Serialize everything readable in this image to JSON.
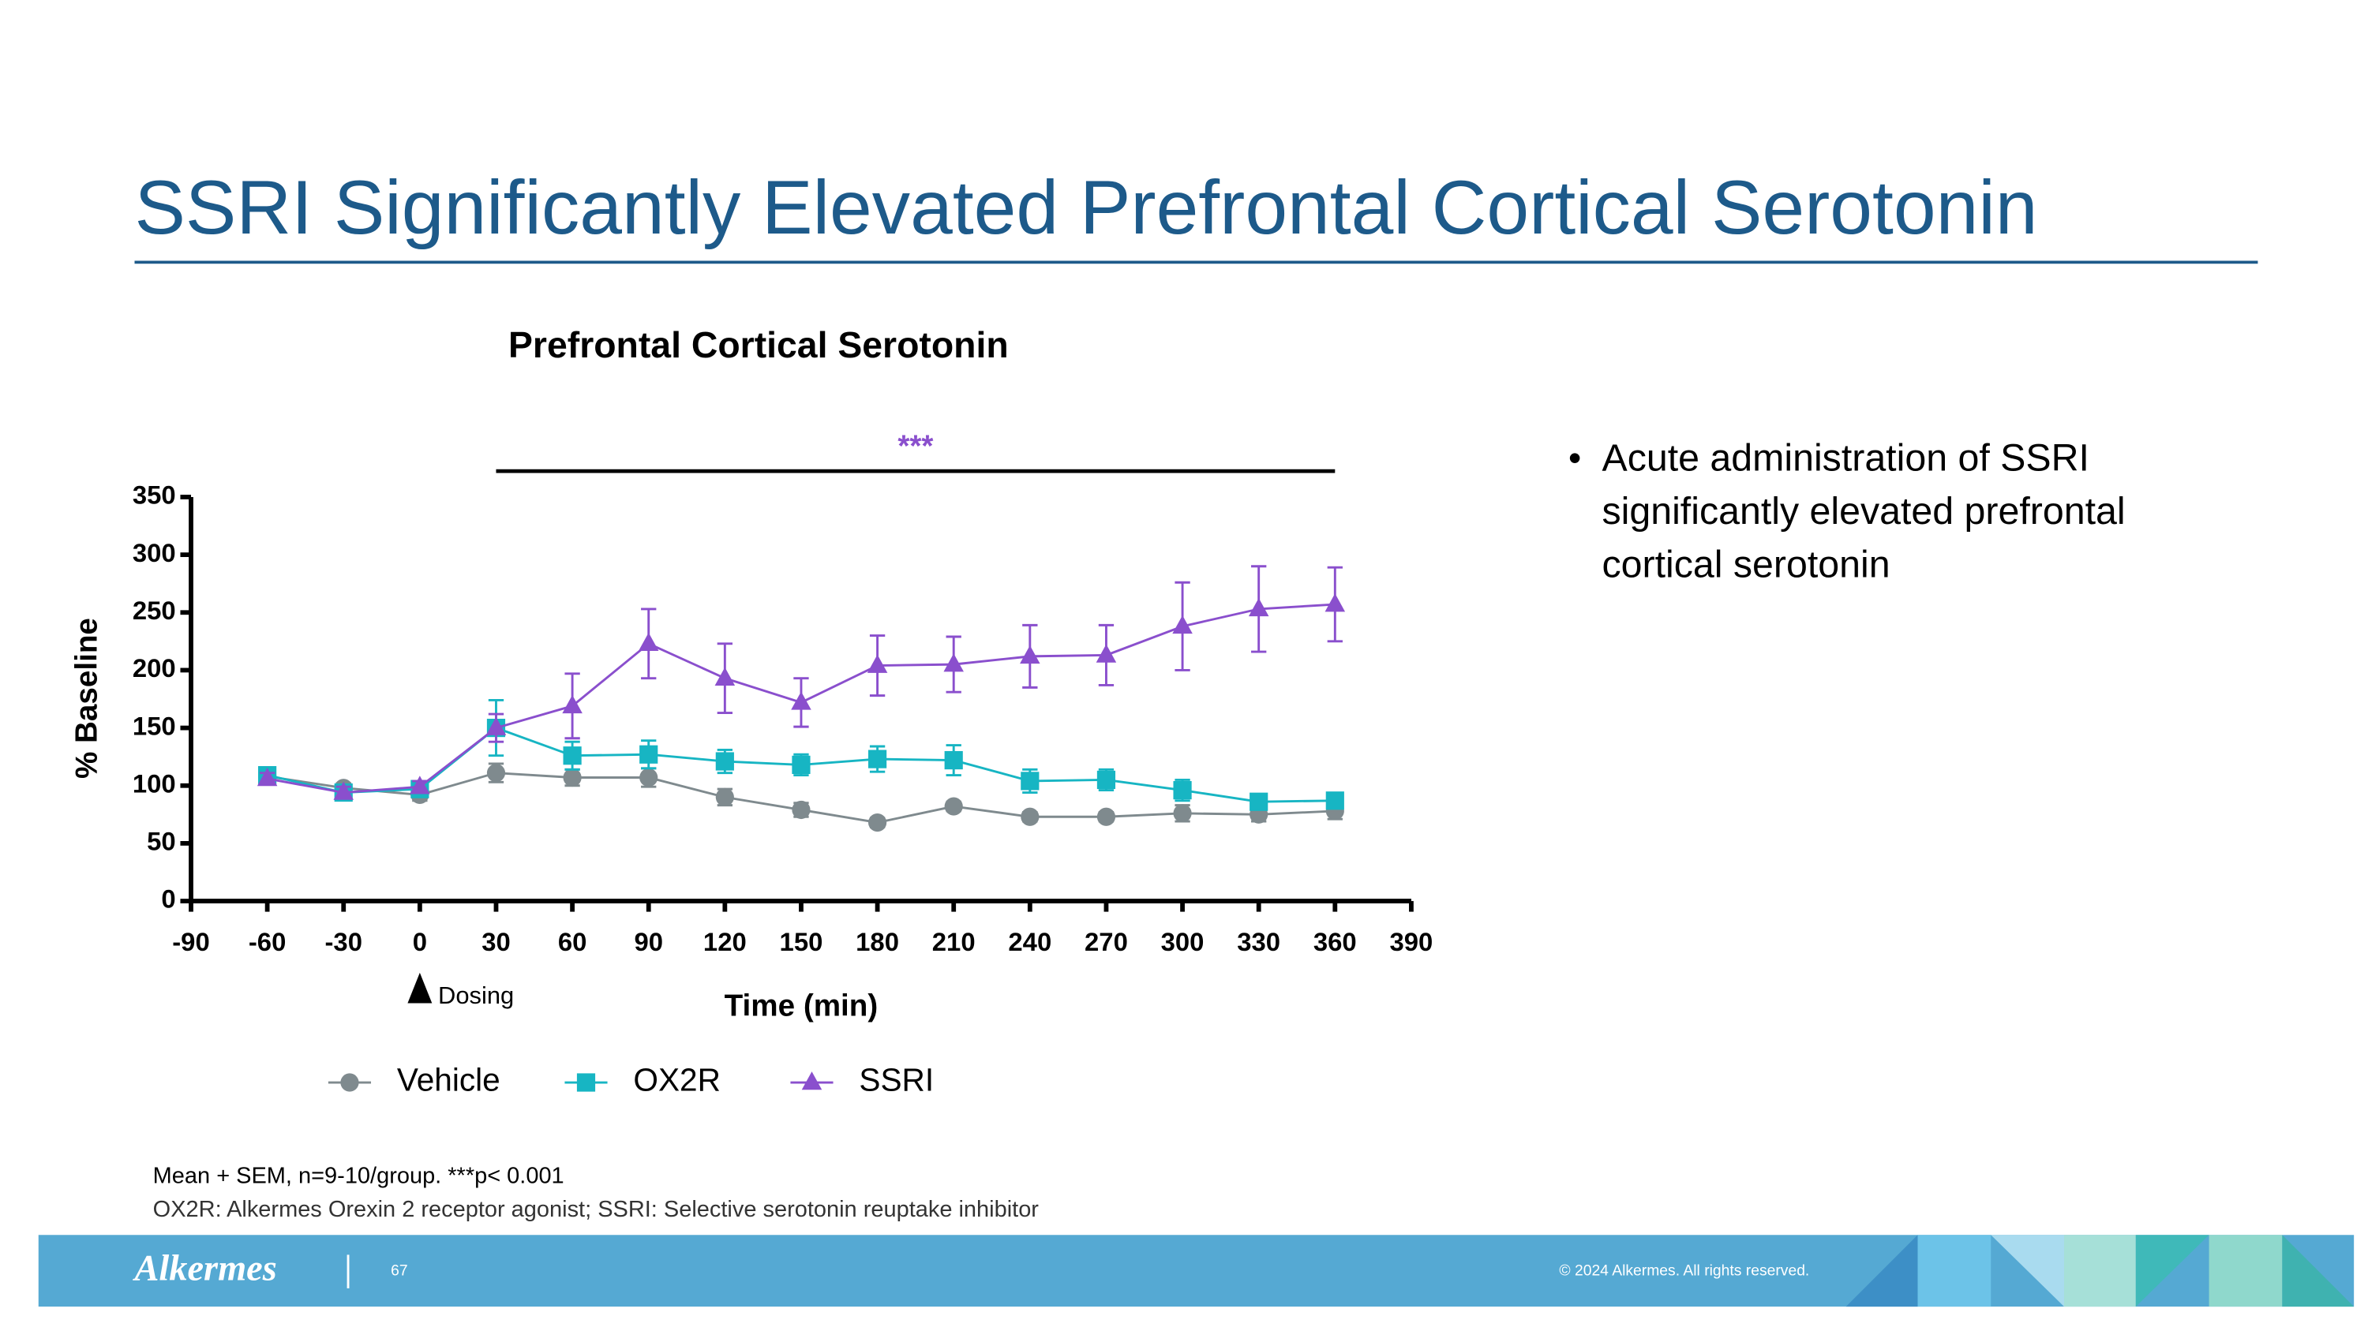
{
  "header": {
    "title": "SSRI Significantly Elevated Prefrontal Cortical Serotonin"
  },
  "chart_data": {
    "type": "line",
    "title": "Prefrontal Cortical Serotonin",
    "xlabel": "Time (min)",
    "ylabel": "% Baseline",
    "x": [
      -60,
      -30,
      0,
      30,
      60,
      90,
      120,
      150,
      180,
      210,
      240,
      270,
      300,
      330,
      360
    ],
    "xlim": [
      -90,
      390
    ],
    "xticks": [
      -90,
      -60,
      -30,
      0,
      30,
      60,
      90,
      120,
      150,
      180,
      210,
      240,
      270,
      300,
      330,
      360,
      390
    ],
    "ylim": [
      0,
      350
    ],
    "yticks": [
      0,
      50,
      100,
      150,
      200,
      250,
      300,
      350
    ],
    "series": [
      {
        "name": "Vehicle",
        "color": "#7f8a8e",
        "marker": "circle",
        "values": [
          108,
          98,
          92,
          111,
          107,
          107,
          90,
          79,
          68,
          82,
          73,
          73,
          76,
          75,
          78
        ],
        "errors": [
          5,
          4,
          5,
          8,
          7,
          8,
          7,
          6,
          4,
          4,
          4,
          4,
          7,
          6,
          7
        ]
      },
      {
        "name": "OX2R",
        "color": "#17b5c3",
        "marker": "square",
        "values": [
          109,
          94,
          97,
          150,
          126,
          127,
          121,
          118,
          123,
          122,
          104,
          105,
          96,
          86,
          87
        ],
        "errors": [
          5,
          5,
          5,
          24,
          12,
          12,
          10,
          9,
          11,
          13,
          10,
          9,
          9,
          5,
          5
        ]
      },
      {
        "name": "SSRI",
        "color": "#8a4fcd",
        "marker": "triangle",
        "values": [
          106,
          94,
          99,
          150,
          169,
          223,
          193,
          172,
          204,
          205,
          212,
          213,
          238,
          253,
          257
        ],
        "errors": [
          5,
          5,
          5,
          12,
          28,
          30,
          30,
          21,
          26,
          24,
          27,
          26,
          38,
          37,
          32
        ]
      }
    ],
    "significance": {
      "label": "***",
      "x": [
        30,
        360
      ],
      "color": "#8a4fcd"
    },
    "annotation": {
      "text": "Dosing",
      "x": 0
    }
  },
  "bullet": [
    "Acute administration of SSRI",
    "significantly elevated prefrontal",
    "cortical serotonin"
  ],
  "footnotes": [
    "Mean + SEM, n=9-10/group. ***p< 0.001",
    "OX2R: Alkermes Orexin 2 receptor agonist; SSRI: Selective serotonin reuptake inhibitor"
  ],
  "footer": {
    "logo": "Alkermes",
    "page": "67",
    "copyright": "© 2024 Alkermes. All rights reserved."
  }
}
